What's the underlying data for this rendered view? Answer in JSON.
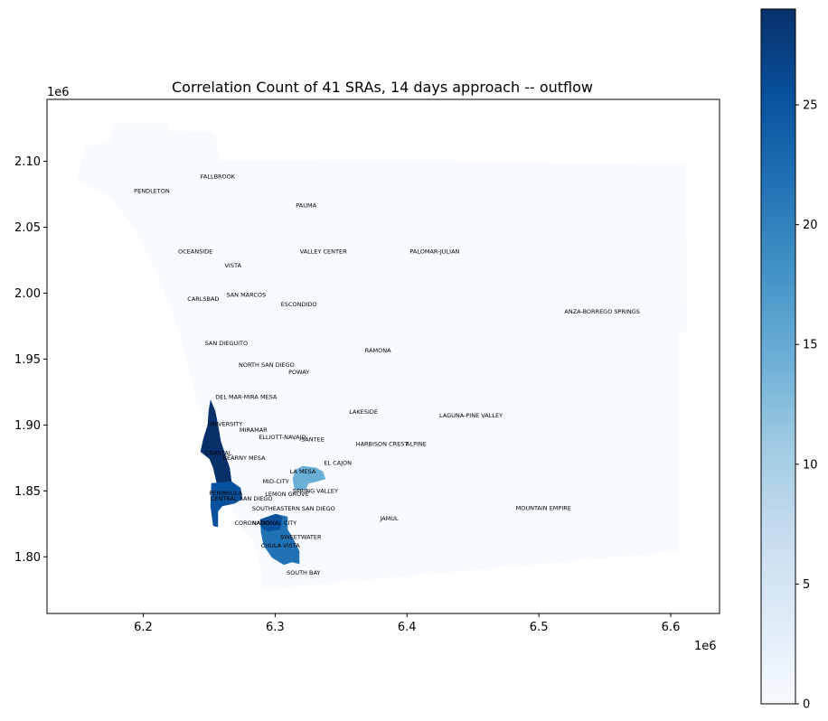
{
  "chart_data": {
    "type": "choropleth",
    "title": "Correlation Count of 41 SRAs, 14 days approach -- outflow",
    "x_offset_label": "1e6",
    "y_offset_label": "1e6",
    "xlim": [
      6.127,
      6.637
    ],
    "ylim": [
      1.757,
      2.147
    ],
    "x_ticks": [
      {
        "value": 6.2,
        "label": "6.2"
      },
      {
        "value": 6.3,
        "label": "6.3"
      },
      {
        "value": 6.4,
        "label": "6.4"
      },
      {
        "value": 6.5,
        "label": "6.5"
      },
      {
        "value": 6.6,
        "label": "6.6"
      }
    ],
    "y_ticks": [
      {
        "value": 1.8,
        "label": "1.80"
      },
      {
        "value": 1.85,
        "label": "1.85"
      },
      {
        "value": 1.9,
        "label": "1.90"
      },
      {
        "value": 1.95,
        "label": "1.95"
      },
      {
        "value": 2.0,
        "label": "2.00"
      },
      {
        "value": 2.05,
        "label": "2.05"
      },
      {
        "value": 2.1,
        "label": "2.10"
      }
    ],
    "colorbar": {
      "min": 0,
      "max": 29,
      "ticks": [
        {
          "value": 0,
          "label": "0"
        },
        {
          "value": 5,
          "label": "5"
        },
        {
          "value": 10,
          "label": "10"
        },
        {
          "value": 15,
          "label": "15"
        },
        {
          "value": 20,
          "label": "20"
        },
        {
          "value": 25,
          "label": "25"
        }
      ],
      "colormap": [
        "#f7fbff",
        "#deebf7",
        "#c6dbef",
        "#9ecae1",
        "#6baed6",
        "#4292c6",
        "#2171b5",
        "#08519c",
        "#08306b"
      ]
    },
    "labels": [
      {
        "name": "FALLBROOK",
        "x": 6.2565,
        "y": 2.0885
      },
      {
        "name": "PENDLETON",
        "x": 6.2065,
        "y": 2.0775
      },
      {
        "name": "PAUMA",
        "x": 6.3235,
        "y": 2.0665
      },
      {
        "name": "OCEANSIDE",
        "x": 6.2395,
        "y": 2.0315
      },
      {
        "name": "VALLEY CENTER",
        "x": 6.3365,
        "y": 2.0315
      },
      {
        "name": "PALOMAR-JULIAN",
        "x": 6.421,
        "y": 2.0315
      },
      {
        "name": "VISTA",
        "x": 6.268,
        "y": 2.021
      },
      {
        "name": "CARLSBAD",
        "x": 6.2455,
        "y": 1.9955
      },
      {
        "name": "SAN MARCOS",
        "x": 6.278,
        "y": 1.9985
      },
      {
        "name": "ESCONDIDO",
        "x": 6.318,
        "y": 1.9915
      },
      {
        "name": "ANZA-BORREGO SPRINGS",
        "x": 6.548,
        "y": 1.986
      },
      {
        "name": "SAN DIEGUITO",
        "x": 6.263,
        "y": 1.962
      },
      {
        "name": "RAMONA",
        "x": 6.378,
        "y": 1.9565
      },
      {
        "name": "NORTH SAN DIEGO",
        "x": 6.2935,
        "y": 1.9455
      },
      {
        "name": "POWAY",
        "x": 6.318,
        "y": 1.94
      },
      {
        "name": "DEL MAR-MIRA MESA",
        "x": 6.278,
        "y": 1.921
      },
      {
        "name": "LAKESIDE",
        "x": 6.367,
        "y": 1.91
      },
      {
        "name": "LAGUNA-PINE VALLEY",
        "x": 6.4485,
        "y": 1.907
      },
      {
        "name": "UNIVERSITY",
        "x": 6.262,
        "y": 1.9005
      },
      {
        "name": "MIRAMAR",
        "x": 6.2835,
        "y": 1.896
      },
      {
        "name": "ELLIOTT-NAVAJO",
        "x": 6.3055,
        "y": 1.8905
      },
      {
        "name": "SANTEE",
        "x": 6.3285,
        "y": 1.889
      },
      {
        "name": "HARBISON CREST",
        "x": 6.381,
        "y": 1.8855
      },
      {
        "name": "ALPINE",
        "x": 6.407,
        "y": 1.8855
      },
      {
        "name": "COASTAL",
        "x": 6.257,
        "y": 1.8785
      },
      {
        "name": "KEARNY MESA",
        "x": 6.2765,
        "y": 1.875
      },
      {
        "name": "EL CAJON",
        "x": 6.3475,
        "y": 1.871
      },
      {
        "name": "LA MESA",
        "x": 6.321,
        "y": 1.8645
      },
      {
        "name": "MID-CITY",
        "x": 6.3005,
        "y": 1.857
      },
      {
        "name": "SPRING VALLEY",
        "x": 6.3305,
        "y": 1.85
      },
      {
        "name": "PENINSULA",
        "x": 6.2625,
        "y": 1.848
      },
      {
        "name": "LEMON GROVE",
        "x": 6.309,
        "y": 1.8475
      },
      {
        "name": "CENTRAL SAN DIEGO",
        "x": 6.2745,
        "y": 1.844
      },
      {
        "name": "SOUTHEASTERN SAN DIEGO",
        "x": 6.314,
        "y": 1.8365
      },
      {
        "name": "MOUNTAIN EMPIRE",
        "x": 6.5035,
        "y": 1.837
      },
      {
        "name": "JAMUL",
        "x": 6.3865,
        "y": 1.829
      },
      {
        "name": "CORONADO",
        "x": 6.2825,
        "y": 1.8255
      },
      {
        "name": "NATIONAL CITY",
        "x": 6.2995,
        "y": 1.8255
      },
      {
        "name": "SWEETWATER",
        "x": 6.3195,
        "y": 1.815
      },
      {
        "name": "CHULA VISTA",
        "x": 6.304,
        "y": 1.8085
      },
      {
        "name": "SOUTH BAY",
        "x": 6.3215,
        "y": 1.788
      }
    ]
  }
}
